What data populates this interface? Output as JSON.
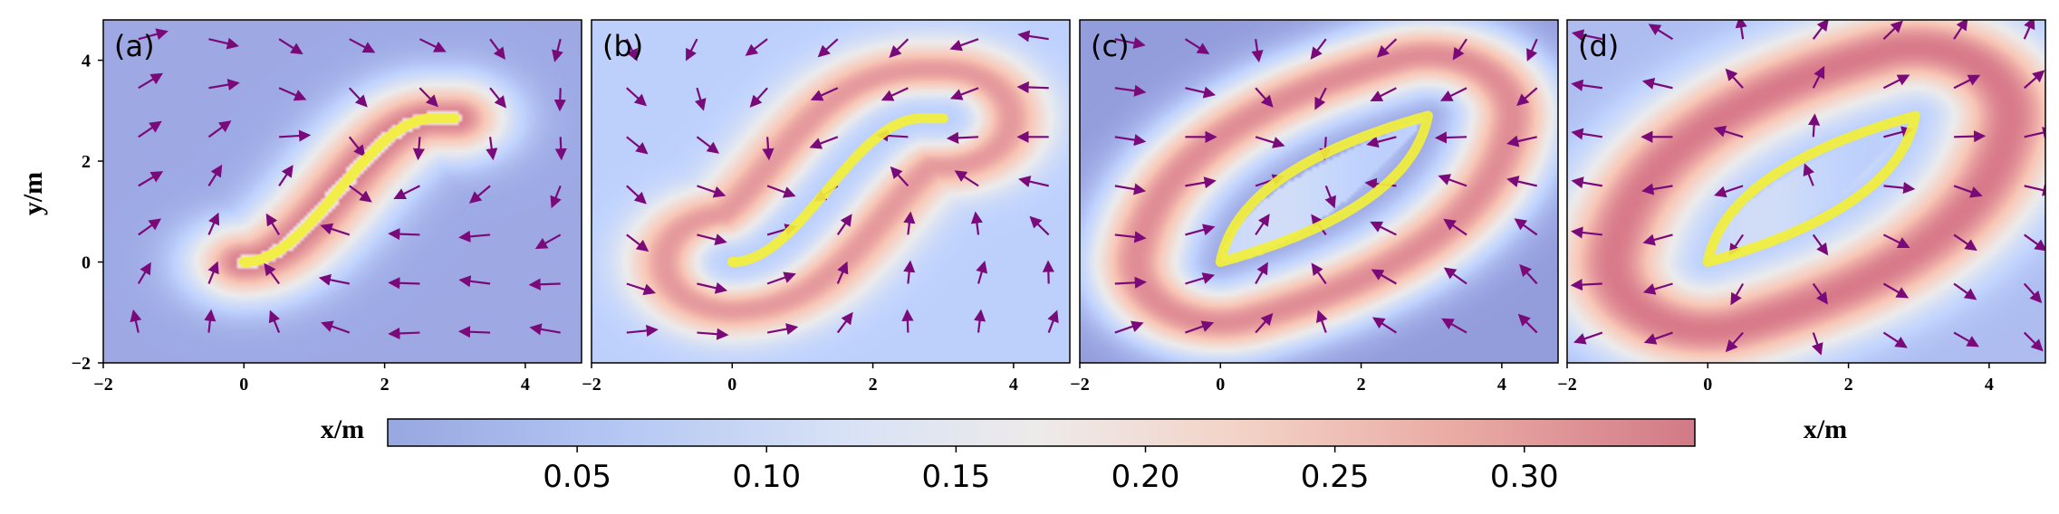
{
  "chart_data": {
    "type": "heatmap",
    "description_axes": {
      "xlabel": "x/m",
      "ylabel": "y/m",
      "xlim": [
        -2,
        4.8
      ],
      "ylim": [
        -2,
        4.8
      ],
      "xticks": [
        -2,
        0,
        2,
        4
      ],
      "yticks": [
        -2,
        0,
        2,
        4
      ],
      "xtick_labels": [
        "−2",
        "0",
        "2",
        "4"
      ],
      "ytick_labels": [
        "−2",
        "0",
        "2",
        "4"
      ]
    },
    "colorbar": {
      "range": [
        0.0,
        0.345
      ],
      "ticks": [
        0.05,
        0.1,
        0.15,
        0.2,
        0.25,
        0.3
      ],
      "tick_labels": [
        "0.05",
        "0.10",
        "0.15",
        "0.20",
        "0.25",
        "0.30"
      ],
      "colormap": "coolwarm",
      "alpha": 0.55
    },
    "colors": {
      "curve": "#f2ef3a",
      "arrows": "#7a0a7a"
    },
    "panels": [
      {
        "label": "(a)",
        "curve": "s-curve",
        "field": "curve-band",
        "sigma": 0.55,
        "peak": 0.32,
        "base": 0.02
      },
      {
        "label": "(b)",
        "curve": "s-curve",
        "field": "offset-band",
        "sigma": 0.55,
        "peak": 0.32,
        "base": 0.08
      },
      {
        "label": "(c)",
        "curve": "lens",
        "field": "lens-ring",
        "sigma": 0.5,
        "peak": 0.32,
        "base": 0.0
      },
      {
        "label": "(d)",
        "curve": "lens",
        "field": "lens-ring-wide",
        "sigma": 0.6,
        "peak": 0.34,
        "base": 0.05
      }
    ]
  },
  "axis_labels": {
    "y": "y/m",
    "x_left": "x/m",
    "x_right": "x/m"
  }
}
